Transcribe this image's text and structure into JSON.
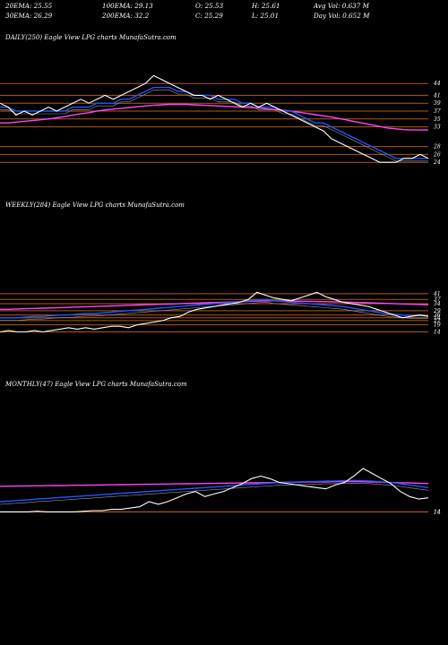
{
  "header": {
    "ema20": "20EMA: 25.55",
    "ema100": "100EMA: 29.13",
    "open": "O: 25.53",
    "high": "H: 25.61",
    "avg_vol": "Avg Vol: 0.637  M",
    "ema30": "30EMA: 26.29",
    "ema200": "200EMA: 32.2",
    "close": "C: 25.29",
    "low": "L: 25.01",
    "day_vol": "Day Vol: 0.652  M"
  },
  "colors": {
    "price": "#ffffff",
    "ema_fast": "#2255ff",
    "ema_slow": "#ff44ff",
    "ema_grey": "#9a9a9a",
    "levels": "#b05a14"
  },
  "chart_data": [
    {
      "type": "line",
      "title": "DAILY(250) Eagle  View  LPG charts MunafaSutra.com",
      "ylim": [
        22,
        47
      ],
      "level_labels": [
        "44",
        "41",
        "39",
        "37",
        "35",
        "33",
        "28",
        "26",
        "24"
      ],
      "levels": [
        44,
        41,
        39,
        37,
        35,
        33,
        28,
        26,
        24
      ],
      "series": [
        {
          "role": "price",
          "values": [
            39,
            38,
            36,
            37,
            36,
            37,
            38,
            37,
            38,
            39,
            40,
            39,
            40,
            41,
            40,
            41,
            42,
            43,
            44,
            46,
            45,
            44,
            43,
            42,
            41,
            41,
            40,
            41,
            40,
            39,
            38,
            39,
            38,
            39,
            38,
            37,
            36,
            35,
            34,
            33,
            32,
            30,
            29,
            28,
            27,
            26,
            25,
            24,
            24,
            24,
            25,
            25,
            26,
            25
          ]
        },
        {
          "role": "ema-fast",
          "values": [
            38,
            38,
            37,
            37,
            37,
            37,
            37,
            37,
            37,
            38,
            38,
            38,
            39,
            39,
            39,
            40,
            40,
            41,
            42,
            43,
            43,
            43,
            42,
            42,
            41,
            41,
            41,
            40,
            40,
            40,
            39,
            39,
            38,
            38,
            38,
            37,
            37,
            36,
            35,
            34,
            34,
            33,
            32,
            31,
            30,
            29,
            28,
            27,
            26,
            25,
            25,
            25,
            25,
            25
          ]
        },
        {
          "role": "ema-slow",
          "values": [
            34,
            34,
            34.2,
            34.4,
            34.6,
            34.8,
            35,
            35.3,
            35.6,
            36,
            36.3,
            36.6,
            37,
            37.3,
            37.5,
            37.7,
            37.9,
            38.1,
            38.3,
            38.5,
            38.6,
            38.7,
            38.7,
            38.7,
            38.6,
            38.5,
            38.4,
            38.3,
            38.2,
            38.1,
            38,
            37.9,
            37.8,
            37.6,
            37.4,
            37.2,
            37,
            36.7,
            36.4,
            36.1,
            35.8,
            35.5,
            35.1,
            34.7,
            34.3,
            33.9,
            33.5,
            33.1,
            32.7,
            32.5,
            32.3,
            32.2,
            32.2,
            32.2
          ]
        }
      ]
    },
    {
      "type": "line",
      "title": "WEEKLY(284) Eagle  View  LPG charts MunafaSutra.com",
      "ylim": [
        8,
        46
      ],
      "level_labels": [
        "41",
        "37",
        "34",
        "29",
        "26",
        "24",
        "22",
        "19",
        "14"
      ],
      "levels": [
        41,
        37,
        34,
        29,
        26,
        24,
        22,
        19,
        14
      ],
      "series": [
        {
          "role": "price",
          "values": [
            14,
            15,
            14,
            14,
            15,
            14,
            15,
            16,
            17,
            16,
            17,
            16,
            17,
            18,
            18,
            17,
            19,
            20,
            21,
            22,
            24,
            25,
            28,
            30,
            31,
            32,
            33,
            34,
            35,
            37,
            42,
            40,
            38,
            37,
            36,
            38,
            40,
            42,
            39,
            37,
            35,
            34,
            33,
            32,
            30,
            28,
            26,
            24,
            25,
            26,
            25
          ]
        },
        {
          "role": "ema-fast",
          "values": [
            24,
            24,
            24,
            24.5,
            25,
            25,
            25.5,
            26,
            26,
            26.5,
            27,
            27,
            27.5,
            28,
            28.5,
            29,
            29.5,
            30,
            30.5,
            31,
            31.5,
            32,
            32.5,
            33,
            33.5,
            34,
            34.5,
            35,
            35.5,
            36,
            36.5,
            37,
            36,
            35.5,
            35,
            34.5,
            34,
            33.5,
            33,
            32.5,
            32,
            31,
            30,
            29,
            28,
            27,
            26.5,
            26,
            25.5,
            25.5,
            25.5
          ]
        },
        {
          "role": "ema-slow",
          "values": [
            30,
            30,
            30.2,
            30.4,
            30.6,
            30.8,
            31,
            31.2,
            31.4,
            31.6,
            31.8,
            32,
            32.2,
            32.4,
            32.6,
            32.8,
            33,
            33.2,
            33.4,
            33.6,
            33.8,
            34,
            34.2,
            34.4,
            34.6,
            34.8,
            35,
            35.2,
            35.4,
            35.6,
            35.8,
            36,
            36,
            35.9,
            35.8,
            35.7,
            35.6,
            35.5,
            35.4,
            35.3,
            35.2,
            35,
            34.8,
            34.6,
            34.4,
            34.2,
            34,
            33.8,
            33.6,
            33.4,
            33.2
          ]
        }
      ]
    },
    {
      "type": "line",
      "title": "MONTHLY(47) Eagle  View  LPG charts MunafaSutra.com",
      "ylim": [
        8,
        50
      ],
      "level_labels": [
        "14",
        "14"
      ],
      "levels": [
        14,
        14
      ],
      "series": [
        {
          "role": "price",
          "values": [
            14,
            14,
            14,
            14,
            14.5,
            14,
            14,
            14,
            14,
            14.5,
            15,
            15,
            16,
            16,
            17,
            18,
            22,
            20,
            22,
            25,
            28,
            30,
            26,
            28,
            30,
            33,
            36,
            40,
            42,
            40,
            37,
            36,
            35,
            34,
            33,
            32,
            35,
            37,
            42,
            48,
            44,
            40,
            36,
            30,
            26,
            24,
            25
          ]
        },
        {
          "role": "ema-fast",
          "values": [
            22,
            22.5,
            23,
            23.5,
            24,
            24.5,
            25,
            25.5,
            26,
            26.5,
            27,
            27.5,
            28,
            28.5,
            29,
            29.5,
            30,
            30.5,
            31,
            31.5,
            32,
            32.5,
            33,
            33.5,
            34,
            34.5,
            35,
            35.5,
            36,
            36.5,
            37,
            37.2,
            37.4,
            37.6,
            37.8,
            38,
            38.2,
            38.4,
            38.6,
            38.4,
            38,
            37.5,
            37,
            36,
            35,
            34,
            33
          ]
        },
        {
          "role": "ema-slow",
          "values": [
            34,
            34.1,
            34.2,
            34.3,
            34.4,
            34.5,
            34.6,
            34.7,
            34.8,
            34.9,
            35,
            35.1,
            35.2,
            35.3,
            35.4,
            35.5,
            35.6,
            35.7,
            35.8,
            35.9,
            36,
            36.1,
            36.2,
            36.3,
            36.4,
            36.5,
            36.6,
            36.7,
            36.8,
            36.9,
            37,
            37.1,
            37.2,
            37.3,
            37.4,
            37.5,
            37.6,
            37.7,
            37.8,
            37.6,
            37.4,
            37.2,
            37,
            36.8,
            36.6,
            36.4,
            36.2
          ]
        }
      ]
    }
  ]
}
